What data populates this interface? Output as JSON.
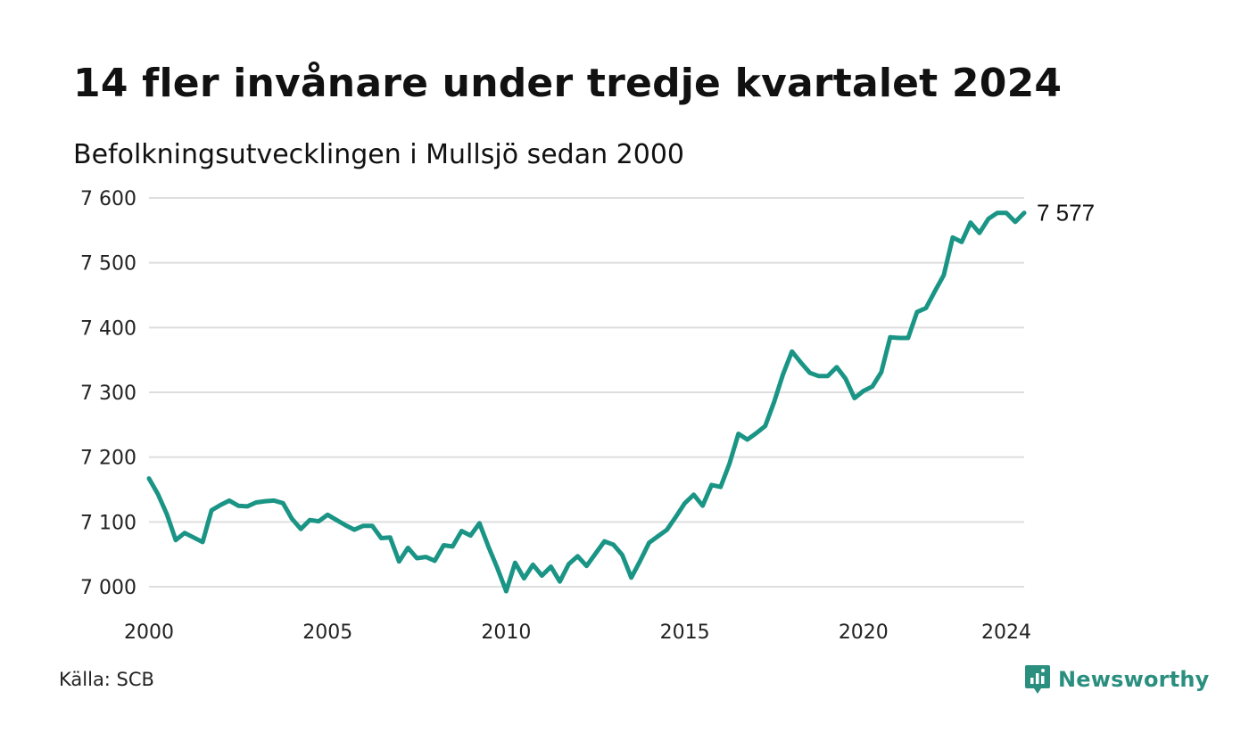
{
  "header": {
    "title": "14 fler invånare under tredje kvartalet 2024",
    "subtitle": "Befolkningsutvecklingen i Mullsjö sedan 2000"
  },
  "footer": {
    "source": "Källa: SCB",
    "brand_name": "Newsworthy",
    "brand_icon": "newsworthy-logo-icon"
  },
  "colors": {
    "line": "#1a9585",
    "grid": "#dedede",
    "brand": "#2a8f7f"
  },
  "chart_data": {
    "type": "line",
    "ylim": [
      7000,
      7600
    ],
    "xlim": [
      2000,
      2024.5
    ],
    "y_ticks": [
      7000,
      7100,
      7200,
      7300,
      7400,
      7500,
      7600
    ],
    "y_tick_labels": [
      "7 000",
      "7 100",
      "7 200",
      "7 300",
      "7 400",
      "7 500",
      "7 600"
    ],
    "x_ticks": [
      2000,
      2005,
      2010,
      2015,
      2020,
      2024
    ],
    "x_tick_labels": [
      "2000",
      "2005",
      "2010",
      "2015",
      "2020",
      "2024"
    ],
    "grid": "horizontal",
    "end_label": "7 577",
    "series": [
      {
        "x": [
          2000.0,
          2000.25,
          2000.5,
          2000.75,
          2001.0,
          2001.25,
          2001.5,
          2001.75,
          2002.0,
          2002.25,
          2002.5,
          2002.75,
          2003.0,
          2003.25,
          2003.5,
          2003.75,
          2004.0,
          2004.25,
          2004.5,
          2004.75,
          2005.0,
          2005.25,
          2005.5,
          2005.75,
          2006.0,
          2006.25,
          2006.5,
          2006.75,
          2007.0,
          2007.25,
          2007.5,
          2007.75,
          2008.0,
          2008.25,
          2008.5,
          2008.75,
          2009.0,
          2009.25,
          2009.5,
          2009.75,
          2010.0,
          2010.25,
          2010.5,
          2010.75,
          2011.0,
          2011.25,
          2011.5,
          2011.75,
          2012.0,
          2012.25,
          2012.5,
          2012.75,
          2013.0,
          2013.25,
          2013.5,
          2013.75,
          2014.0,
          2014.25,
          2014.5,
          2014.75,
          2015.0,
          2015.25,
          2015.5,
          2015.75,
          2016.0,
          2016.25,
          2016.5,
          2016.75,
          2017.0,
          2017.25,
          2017.5,
          2017.75,
          2018.0,
          2018.25,
          2018.5,
          2018.75,
          2019.0,
          2019.25,
          2019.5,
          2019.75,
          2020.0,
          2020.25,
          2020.5,
          2020.75,
          2021.0,
          2021.25,
          2021.5,
          2021.75,
          2022.0,
          2022.25,
          2022.5,
          2022.75,
          2023.0,
          2023.25,
          2023.5,
          2023.75,
          2024.0,
          2024.25,
          2024.5
        ],
        "values": [
          7167,
          7143,
          7112,
          7072,
          7083,
          7076,
          7069,
          7118,
          7126,
          7133,
          7125,
          7124,
          7130,
          7132,
          7133,
          7129,
          7105,
          7089,
          7103,
          7101,
          7111,
          7103,
          7095,
          7088,
          7094,
          7094,
          7075,
          7076,
          7039,
          7060,
          7044,
          7046,
          7040,
          7064,
          7062,
          7086,
          7079,
          7098,
          7062,
          7029,
          6993,
          7037,
          7013,
          7034,
          7017,
          7031,
          7008,
          7035,
          7047,
          7032,
          7051,
          7070,
          7065,
          7049,
          7014,
          7040,
          7068,
          7078,
          7088,
          7108,
          7129,
          7142,
          7125,
          7157,
          7154,
          7190,
          7236,
          7227,
          7237,
          7248,
          7285,
          7328,
          7363,
          7346,
          7330,
          7325,
          7325,
          7339,
          7321,
          7291,
          7302,
          7309,
          7331,
          7385,
          7384,
          7384,
          7424,
          7430,
          7456,
          7481,
          7539,
          7532,
          7562,
          7546,
          7568,
          7577,
          7577,
          7563,
          7577
        ]
      }
    ]
  }
}
